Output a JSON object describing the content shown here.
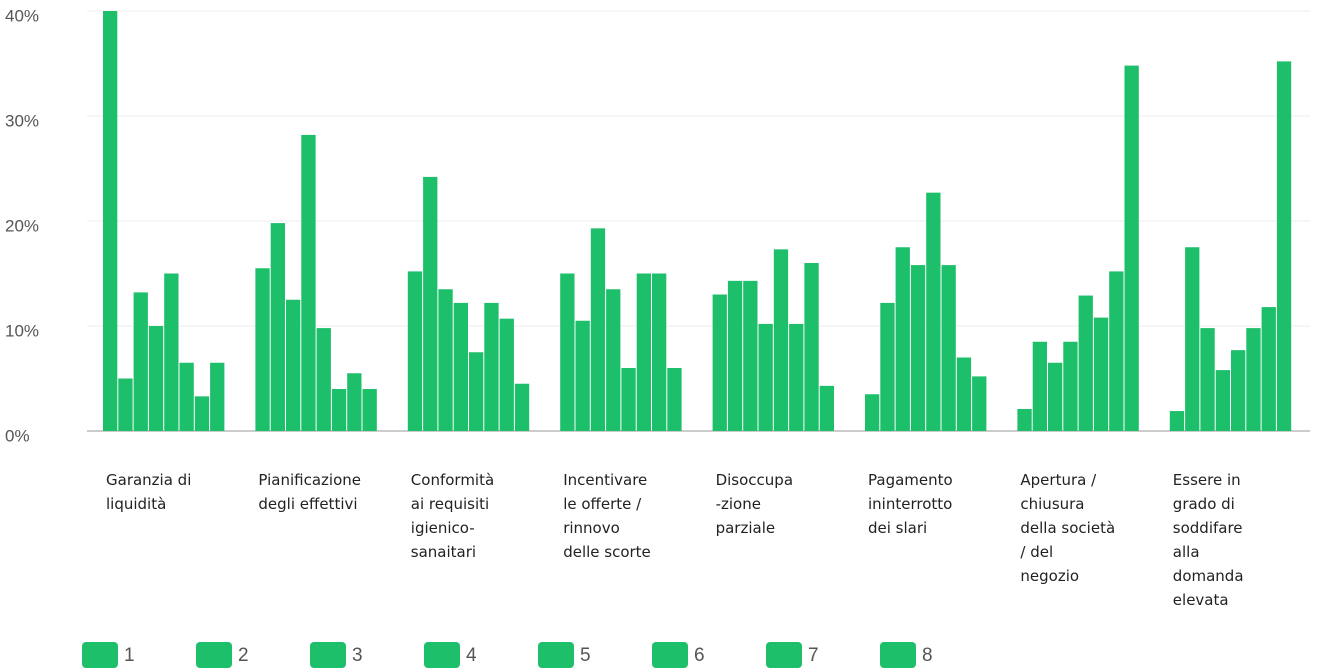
{
  "chart_data": {
    "type": "bar",
    "categories": [
      "Garanzia di\nliquidità",
      "Pianificazione\ndegli effettivi",
      "Conformità\nai requisiti\nigienico-\nsanaitari",
      "Incentivare\nle offerte /\nrinnovo\ndelle scorte",
      "Disoccupa\n-zione\nparziale",
      "Pagamento\nininterrotto\ndei slari",
      "Apertura /\nchiusura\ndella società\n/ del\nnegozio",
      "Essere in\ngrado di\nsoddifare\nalla\ndomanda\nelevata"
    ],
    "series": [
      {
        "name": "1",
        "color": "#1dbf6b",
        "values": [
          40,
          15.5,
          15.2,
          15,
          13,
          3.5,
          2.1,
          1.9
        ]
      },
      {
        "name": "2",
        "color": "#1dbf6b",
        "values": [
          5,
          19.8,
          24.2,
          10.5,
          14.3,
          12.2,
          8.5,
          17.5
        ]
      },
      {
        "name": "3",
        "color": "#1dbf6b",
        "values": [
          13.2,
          12.5,
          13.5,
          19.3,
          14.3,
          17.5,
          6.5,
          9.8
        ]
      },
      {
        "name": "4",
        "color": "#1dbf6b",
        "values": [
          10,
          28.2,
          12.2,
          13.5,
          10.2,
          15.8,
          8.5,
          5.8
        ]
      },
      {
        "name": "5",
        "color": "#1dbf6b",
        "values": [
          15,
          9.8,
          7.5,
          6,
          17.3,
          22.7,
          12.9,
          7.7
        ]
      },
      {
        "name": "6",
        "color": "#1dbf6b",
        "values": [
          6.5,
          4,
          12.2,
          15,
          10.2,
          15.8,
          10.8,
          9.8
        ]
      },
      {
        "name": "7",
        "color": "#1dbf6b",
        "values": [
          3.3,
          5.5,
          10.7,
          15,
          16,
          7,
          15.2,
          11.8
        ]
      },
      {
        "name": "8",
        "color": "#1dbf6b",
        "values": [
          6.5,
          4,
          4.5,
          6,
          4.3,
          5.2,
          34.8,
          35.2
        ]
      }
    ],
    "ylim": [
      0,
      40
    ],
    "yticks": [
      {
        "value": 0,
        "label": "0%"
      },
      {
        "value": 10,
        "label": "10%"
      },
      {
        "value": 20,
        "label": "20%"
      },
      {
        "value": 30,
        "label": "30%"
      },
      {
        "value": 40,
        "label": "40%"
      }
    ],
    "grid": true,
    "legend": "bottom"
  }
}
